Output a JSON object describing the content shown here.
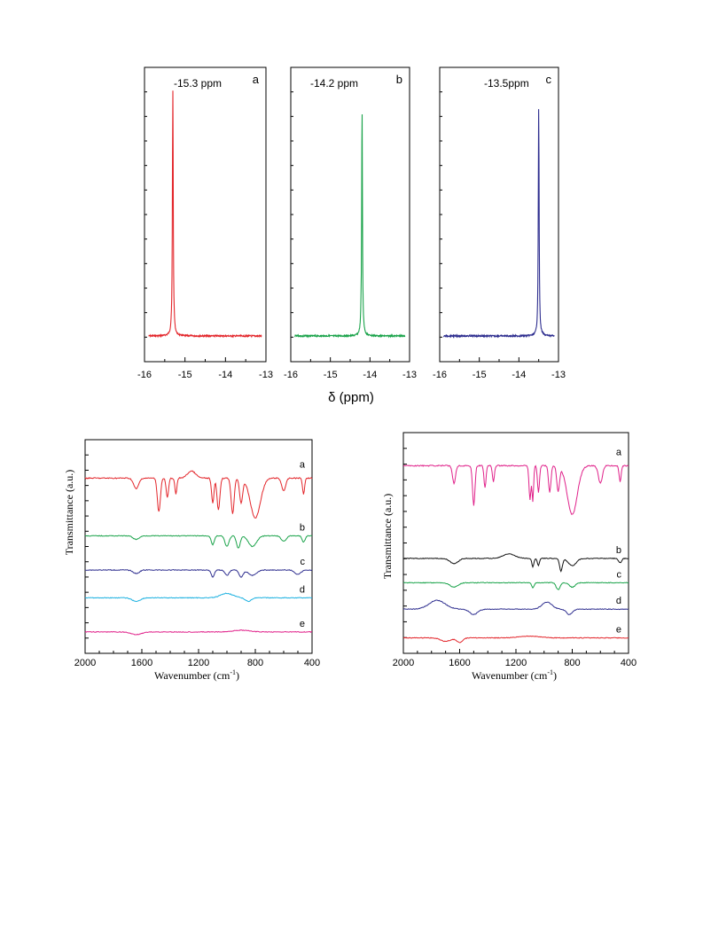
{
  "figure": {
    "nmr_axis_label": "δ (ppm)",
    "nmr_panels": [
      {
        "letter": "a",
        "label": "-15.3 ppm",
        "color": "#e3262b"
      },
      {
        "letter": "b",
        "label": "-14.2 ppm",
        "color": "#1aa34a"
      },
      {
        "letter": "c",
        "label": "-13.5ppm",
        "color": "#2e2e8f"
      }
    ],
    "ir_left": {
      "ylabel": "Transmittance (a.u.)",
      "xlabel": "Wavenumber (cm",
      "xlabel_sup": "-1",
      "xlabel_end": ")"
    },
    "ir_right": {
      "ylabel": "Transmittance (a.u.)",
      "xlabel": "Wavenumber (cm",
      "xlabel_sup": "-1",
      "xlabel_end": ")"
    }
  },
  "chart_data": [
    {
      "type": "line",
      "panel": "a",
      "xlim": [
        -16,
        -13
      ],
      "xticks": [
        -16,
        -15,
        -14,
        -13
      ],
      "xlabel": "δ (ppm)",
      "peak_ppm": -15.3,
      "annotation": "-15.3 ppm",
      "series": [
        {
          "name": "a",
          "color": "#e3262b",
          "peak": -15.3
        }
      ]
    },
    {
      "type": "line",
      "panel": "b",
      "xlim": [
        -16,
        -13
      ],
      "xticks": [
        -16,
        -15,
        -14,
        -13
      ],
      "xlabel": "δ (ppm)",
      "peak_ppm": -14.2,
      "annotation": "-14.2 ppm",
      "series": [
        {
          "name": "b",
          "color": "#1aa34a",
          "peak": -14.2
        }
      ]
    },
    {
      "type": "line",
      "panel": "c",
      "xlim": [
        -16,
        -13
      ],
      "xticks": [
        -16,
        -15,
        -14,
        -13
      ],
      "xlabel": "δ (ppm)",
      "peak_ppm": -13.5,
      "annotation": "-13.5ppm",
      "series": [
        {
          "name": "c",
          "color": "#2e2e8f",
          "peak": -13.5
        }
      ]
    },
    {
      "type": "line",
      "panel": "ir-left",
      "xlim": [
        2000,
        400
      ],
      "xticks": [
        2000,
        1600,
        1200,
        800,
        400
      ],
      "xlabel": "Wavenumber (cm-1)",
      "ylabel": "Transmittance (a.u.)",
      "series": [
        {
          "name": "a",
          "color": "#e3262b",
          "offset": 0.82
        },
        {
          "name": "b",
          "color": "#1aa34a",
          "offset": 0.55
        },
        {
          "name": "c",
          "color": "#2e2e8f",
          "offset": 0.39
        },
        {
          "name": "d",
          "color": "#1ab0e0",
          "offset": 0.26
        },
        {
          "name": "e",
          "color": "#e0218a",
          "offset": 0.1
        }
      ]
    },
    {
      "type": "line",
      "panel": "ir-right",
      "xlim": [
        2000,
        400
      ],
      "xticks": [
        2000,
        1600,
        1200,
        800,
        400
      ],
      "xlabel": "Wavenumber (cm-1)",
      "ylabel": "Transmittance (a.u.)",
      "series": [
        {
          "name": "a",
          "color": "#e0218a",
          "offset": 0.85
        },
        {
          "name": "b",
          "color": "#111111",
          "offset": 0.43
        },
        {
          "name": "c",
          "color": "#1aa34a",
          "offset": 0.32
        },
        {
          "name": "d",
          "color": "#2e2e8f",
          "offset": 0.2
        },
        {
          "name": "e",
          "color": "#e3262b",
          "offset": 0.07
        }
      ]
    }
  ]
}
